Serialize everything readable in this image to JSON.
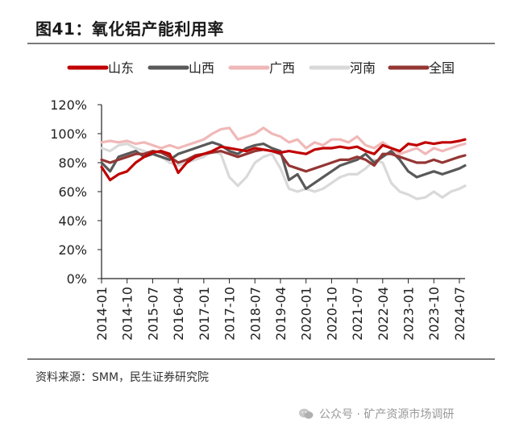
{
  "header": {
    "title": "图41：氧化铝产能利用率"
  },
  "footer": {
    "source": "资料来源：SMM，民生证券研究院"
  },
  "watermark": {
    "text": "公众号 · 矿产资源市场调研"
  },
  "chart_data": {
    "type": "line",
    "title": "氧化铝产能利用率",
    "xlabel": "",
    "ylabel": "",
    "ylim": [
      0,
      120
    ],
    "yticks": [
      "0%",
      "20%",
      "40%",
      "60%",
      "80%",
      "100%",
      "120%"
    ],
    "xticks": [
      "2014-01",
      "2014-10",
      "2015-07",
      "2016-04",
      "2017-01",
      "2017-10",
      "2018-07",
      "2019-04",
      "2020-01",
      "2020-10",
      "2021-07",
      "2022-04",
      "2023-01",
      "2023-10",
      "2024-07"
    ],
    "x_months": [
      "2014-01",
      "2014-04",
      "2014-07",
      "2014-10",
      "2015-01",
      "2015-04",
      "2015-07",
      "2015-10",
      "2016-01",
      "2016-04",
      "2016-07",
      "2016-10",
      "2017-01",
      "2017-04",
      "2017-07",
      "2017-10",
      "2018-01",
      "2018-04",
      "2018-07",
      "2018-10",
      "2019-01",
      "2019-04",
      "2019-07",
      "2019-10",
      "2020-01",
      "2020-04",
      "2020-07",
      "2020-10",
      "2021-01",
      "2021-04",
      "2021-07",
      "2021-10",
      "2022-01",
      "2022-04",
      "2022-07",
      "2022-10",
      "2023-01",
      "2023-04",
      "2023-07",
      "2023-10",
      "2024-01",
      "2024-04",
      "2024-07",
      "2024-09"
    ],
    "series": [
      {
        "name": "山东",
        "color": "#c00000",
        "values": [
          77,
          68,
          72,
          74,
          80,
          84,
          87,
          88,
          86,
          73,
          80,
          84,
          86,
          88,
          91,
          90,
          89,
          88,
          90,
          89,
          88,
          87,
          88,
          87,
          86,
          89,
          90,
          90,
          91,
          90,
          91,
          88,
          86,
          92,
          90,
          88,
          93,
          92,
          94,
          93,
          94,
          94,
          95,
          96
        ]
      },
      {
        "name": "山西",
        "color": "#595959",
        "values": [
          80,
          74,
          84,
          86,
          88,
          84,
          86,
          84,
          82,
          86,
          88,
          90,
          92,
          94,
          92,
          88,
          86,
          90,
          92,
          93,
          90,
          88,
          68,
          72,
          62,
          66,
          70,
          74,
          78,
          80,
          82,
          86,
          80,
          84,
          88,
          82,
          74,
          70,
          72,
          74,
          72,
          74,
          76,
          78
        ]
      },
      {
        "name": "广西",
        "color": "#f0b8b8",
        "values": [
          94,
          95,
          94,
          95,
          93,
          94,
          92,
          90,
          92,
          90,
          92,
          94,
          96,
          100,
          103,
          104,
          96,
          98,
          100,
          104,
          100,
          98,
          94,
          96,
          90,
          94,
          92,
          96,
          96,
          94,
          98,
          92,
          90,
          94,
          90,
          86,
          88,
          90,
          86,
          90,
          88,
          90,
          92,
          93
        ]
      },
      {
        "name": "河南",
        "color": "#d9d9d9",
        "values": [
          90,
          88,
          92,
          93,
          90,
          88,
          86,
          84,
          80,
          78,
          80,
          82,
          84,
          88,
          86,
          70,
          64,
          70,
          80,
          84,
          86,
          76,
          62,
          60,
          62,
          60,
          62,
          66,
          70,
          72,
          72,
          76,
          82,
          80,
          66,
          60,
          58,
          55,
          56,
          60,
          56,
          60,
          62,
          64
        ]
      },
      {
        "name": "全国",
        "color": "#943634",
        "values": [
          82,
          80,
          82,
          84,
          86,
          86,
          88,
          87,
          84,
          80,
          82,
          85,
          86,
          87,
          88,
          86,
          84,
          86,
          88,
          89,
          88,
          86,
          78,
          76,
          74,
          76,
          78,
          80,
          82,
          82,
          84,
          82,
          78,
          86,
          86,
          84,
          82,
          80,
          80,
          82,
          80,
          82,
          84,
          85
        ]
      }
    ]
  }
}
